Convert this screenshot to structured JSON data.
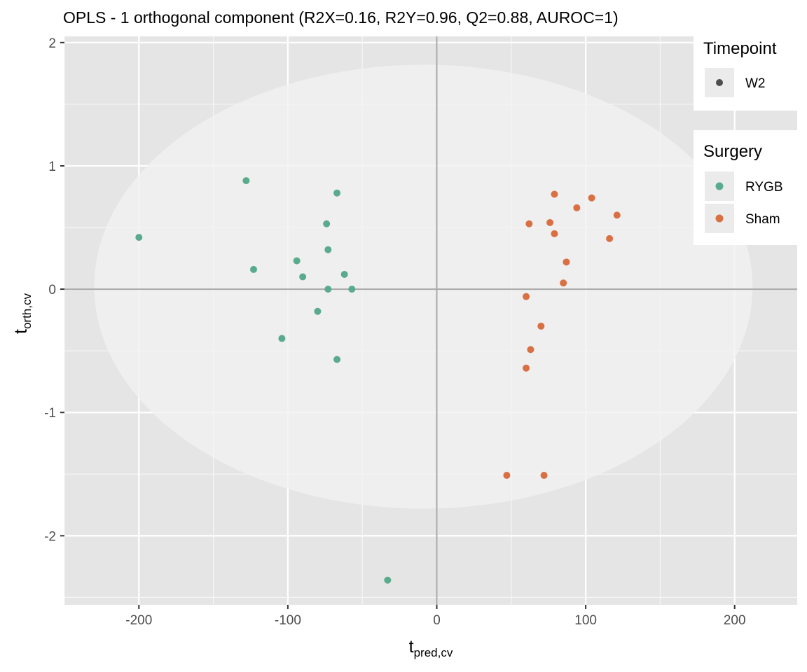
{
  "chart_data": {
    "type": "scatter",
    "title": "OPLS - 1 orthogonal component (R2X=0.16, R2Y=0.96, Q2=0.88, AUROC=1)",
    "xlabel": {
      "main": "t",
      "sub": "pred,cv"
    },
    "ylabel": {
      "main": "t",
      "sub": "orth,cv"
    },
    "xlim": [
      -250,
      242
    ],
    "ylim": [
      -2.56,
      2.05
    ],
    "x_ticks": [
      -200,
      -100,
      0,
      100,
      200
    ],
    "x_tick_labels": [
      "-200",
      "-100",
      "0",
      "100",
      "200"
    ],
    "y_ticks": [
      -2,
      -1,
      0,
      1,
      2
    ],
    "y_tick_labels": [
      "-2",
      "-1",
      "0",
      "1",
      "2"
    ],
    "grid": true,
    "ellipse": {
      "center_x": -9,
      "center_y": 0.02,
      "radius_x": 221,
      "radius_y": 1.8
    },
    "series": [
      {
        "name": "RYGB",
        "color": "#5aab8d",
        "points": [
          {
            "x": -200,
            "y": 0.42
          },
          {
            "x": -128,
            "y": 0.88
          },
          {
            "x": -123,
            "y": 0.16
          },
          {
            "x": -104,
            "y": -0.4
          },
          {
            "x": -94,
            "y": 0.23
          },
          {
            "x": -90,
            "y": 0.1
          },
          {
            "x": -80,
            "y": -0.18
          },
          {
            "x": -74,
            "y": 0.53
          },
          {
            "x": -73,
            "y": 0.32
          },
          {
            "x": -73,
            "y": 0.0
          },
          {
            "x": -67,
            "y": 0.78
          },
          {
            "x": -67,
            "y": -0.57
          },
          {
            "x": -62,
            "y": 0.12
          },
          {
            "x": -57,
            "y": 0.0
          },
          {
            "x": -33,
            "y": -2.36
          }
        ]
      },
      {
        "name": "Sham",
        "color": "#d97044",
        "points": [
          {
            "x": 79,
            "y": 0.77
          },
          {
            "x": 104,
            "y": 0.74
          },
          {
            "x": 94,
            "y": 0.66
          },
          {
            "x": 121,
            "y": 0.6
          },
          {
            "x": 62,
            "y": 0.53
          },
          {
            "x": 76,
            "y": 0.54
          },
          {
            "x": 79,
            "y": 0.45
          },
          {
            "x": 116,
            "y": 0.41
          },
          {
            "x": 87,
            "y": 0.22
          },
          {
            "x": 85,
            "y": 0.05
          },
          {
            "x": 60,
            "y": -0.06
          },
          {
            "x": 70,
            "y": -0.3
          },
          {
            "x": 63,
            "y": -0.49
          },
          {
            "x": 60,
            "y": -0.64
          },
          {
            "x": 47,
            "y": -1.51
          },
          {
            "x": 72,
            "y": -1.51
          }
        ]
      }
    ]
  },
  "legend": {
    "timepoint": {
      "title": "Timepoint",
      "items": [
        {
          "label": "W2",
          "color": "#4d4d4d"
        }
      ]
    },
    "surgery": {
      "title": "Surgery",
      "items": [
        {
          "label": "RYGB",
          "color": "#5aab8d"
        },
        {
          "label": "Sham",
          "color": "#d97044"
        }
      ]
    }
  },
  "colors": {
    "panel_bg": "#e5e5e5",
    "ellipse_fill": "#efefef",
    "grid_major": "#ffffff",
    "zero_line": "#a8a8a8"
  }
}
